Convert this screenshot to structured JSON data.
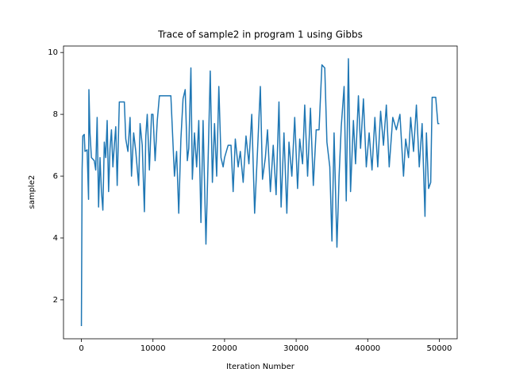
{
  "chart_data": {
    "type": "line",
    "title": "Trace of sample2 in program 1 using Gibbs",
    "x_label": "Iteration Number",
    "y_label": "sample2",
    "xlim": [
      -2500,
      52500
    ],
    "ylim": [
      0.74,
      10.21
    ],
    "xticks": [
      0,
      10000,
      20000,
      30000,
      40000,
      50000
    ],
    "yticks": [
      2,
      4,
      6,
      8,
      10
    ],
    "grid": false,
    "series": [
      {
        "name": "sample2",
        "color": "#1f77b4",
        "x": [
          0,
          100,
          200,
          400,
          500,
          800,
          1000,
          1050,
          1200,
          1400,
          1800,
          2000,
          2200,
          2400,
          2600,
          2800,
          3000,
          3200,
          3400,
          3600,
          3800,
          4000,
          4200,
          4400,
          4600,
          4800,
          5000,
          5300,
          6000,
          6200,
          6500,
          6800,
          7000,
          7300,
          7600,
          8000,
          8200,
          8500,
          8800,
          9000,
          9200,
          9500,
          9800,
          10000,
          10300,
          10600,
          10900,
          11000,
          12500,
          13000,
          13300,
          13600,
          13900,
          14200,
          14500,
          14800,
          15000,
          15300,
          15500,
          15800,
          16100,
          16400,
          16700,
          17000,
          17400,
          17700,
          18000,
          18300,
          18600,
          18900,
          19200,
          19500,
          19800,
          20000,
          20500,
          20900,
          21200,
          21500,
          21900,
          22200,
          22600,
          23000,
          23400,
          23800,
          24200,
          24600,
          25000,
          25300,
          25700,
          26000,
          26400,
          26800,
          27200,
          27600,
          27900,
          28300,
          28700,
          29000,
          29400,
          29800,
          30200,
          30500,
          30900,
          31200,
          31600,
          32000,
          32400,
          32800,
          33200,
          33600,
          34000,
          34300,
          34700,
          35000,
          35300,
          35700,
          36000,
          36300,
          36700,
          37000,
          37300,
          37600,
          38000,
          38300,
          38700,
          39000,
          39400,
          39800,
          40200,
          40600,
          41000,
          41400,
          41800,
          42200,
          42600,
          43000,
          43500,
          44000,
          44500,
          45000,
          45300,
          45700,
          46000,
          46400,
          46800,
          47200,
          47600,
          48000,
          48200,
          48500,
          48800,
          49000,
          49500,
          49800,
          50000
        ],
        "values": [
          1.15,
          6.2,
          7.3,
          7.35,
          6.8,
          6.85,
          5.25,
          8.8,
          7.4,
          6.6,
          6.5,
          6.2,
          7.9,
          5.0,
          6.6,
          5.5,
          4.9,
          7.1,
          6.6,
          7.8,
          5.5,
          6.9,
          7.5,
          6.3,
          7.0,
          7.6,
          5.7,
          8.4,
          8.4,
          7.2,
          6.8,
          7.9,
          6.0,
          7.4,
          6.8,
          5.7,
          7.7,
          7.0,
          4.85,
          7.3,
          8.0,
          6.2,
          8.0,
          8.0,
          6.5,
          7.8,
          8.6,
          8.6,
          8.6,
          6.0,
          6.8,
          4.8,
          7.2,
          8.5,
          8.8,
          6.5,
          6.9,
          9.5,
          5.9,
          7.4,
          6.3,
          7.8,
          4.5,
          7.8,
          3.8,
          6.5,
          9.4,
          5.8,
          7.7,
          6.0,
          8.9,
          6.6,
          6.3,
          6.6,
          7.0,
          7.0,
          5.5,
          7.2,
          6.3,
          6.8,
          5.8,
          7.3,
          6.4,
          8.0,
          4.8,
          6.8,
          8.9,
          5.9,
          6.6,
          7.5,
          5.5,
          7.0,
          5.4,
          8.4,
          5.0,
          7.4,
          4.8,
          7.1,
          6.0,
          7.9,
          5.6,
          7.2,
          6.4,
          8.3,
          6.0,
          8.2,
          5.7,
          7.5,
          7.5,
          9.6,
          9.5,
          7.1,
          6.3,
          3.9,
          7.4,
          3.7,
          6.0,
          7.6,
          8.9,
          5.2,
          9.8,
          5.5,
          7.8,
          6.4,
          8.6,
          6.9,
          8.5,
          6.3,
          7.4,
          6.2,
          7.9,
          6.3,
          8.1,
          7.0,
          8.3,
          6.3,
          7.9,
          7.5,
          8.0,
          6.0,
          7.2,
          6.6,
          7.9,
          6.8,
          8.3,
          6.3,
          7.7,
          4.7,
          7.4,
          5.6,
          5.8,
          8.55,
          8.55,
          7.7,
          7.7
        ]
      }
    ]
  }
}
